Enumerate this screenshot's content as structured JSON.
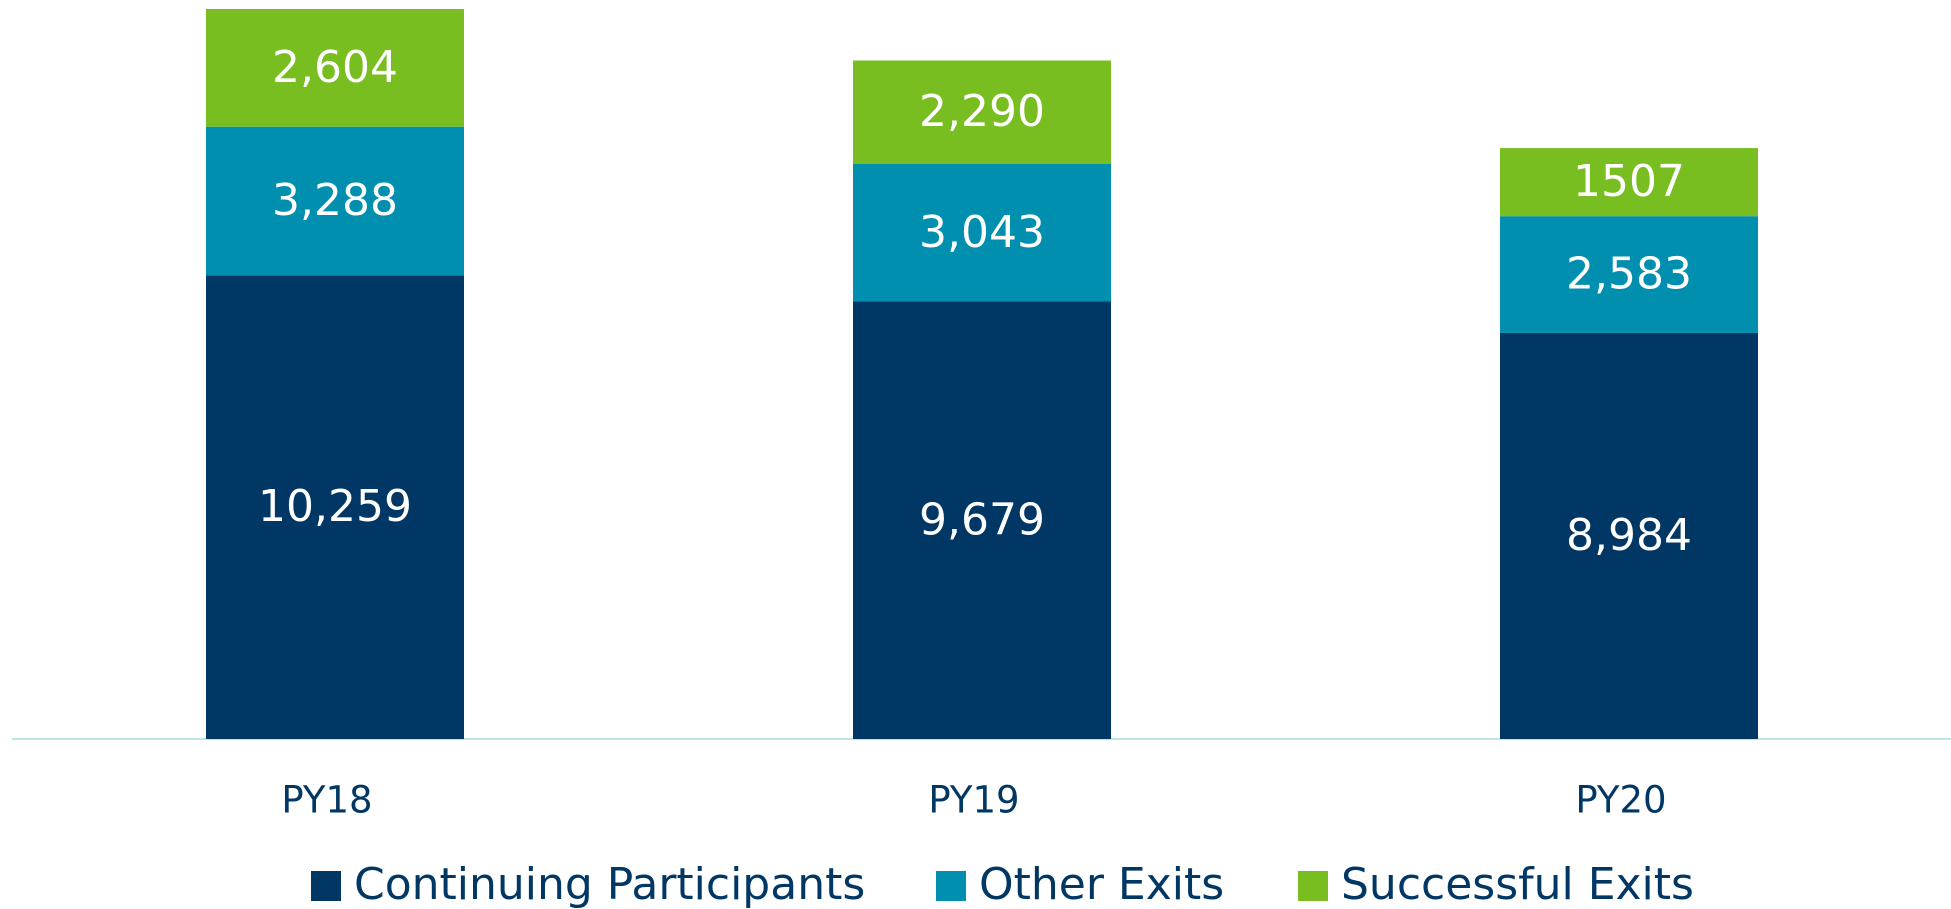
{
  "chart_data": {
    "type": "stacked-bar",
    "categories": [
      "PY18",
      "PY19",
      "PY20"
    ],
    "series": [
      {
        "name": "Continuing Participants",
        "color": "#003764",
        "values": [
          10259,
          9679,
          8984
        ],
        "value_labels": [
          "10,259",
          "9,679",
          "8,984"
        ]
      },
      {
        "name": "Other Exits",
        "color": "#008faf",
        "values": [
          3288,
          3043,
          2583
        ],
        "value_labels": [
          "3,288",
          "3,043",
          "2,583"
        ]
      },
      {
        "name": "Successful Exits",
        "color": "#78be20",
        "values": [
          2604,
          2290,
          1507
        ],
        "value_labels": [
          "2,604",
          "2,290",
          "1507"
        ]
      }
    ]
  }
}
